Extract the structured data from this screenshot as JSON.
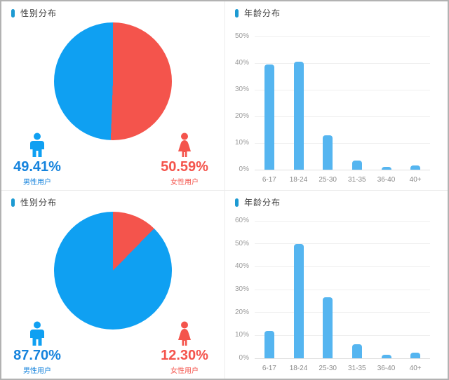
{
  "colors": {
    "pie_blue": "#0fa0f2",
    "pie_red": "#f4544c",
    "bar_blue": "#55b5f0",
    "text_blue": "#1583dd",
    "text_red": "#f4544c",
    "title_marker": "#1d9ad2",
    "grid_line": "#efefef",
    "axis_text": "#999999"
  },
  "panels": {
    "gender_top": {
      "title": "性别分布",
      "male_pct": "49.41%",
      "male_label": "男性用户",
      "female_pct": "50.59%",
      "female_label": "女性用户"
    },
    "age_top": {
      "title": "年龄分布"
    },
    "gender_bottom": {
      "title": "性别分布",
      "male_pct": "87.70%",
      "male_label": "男性用户",
      "female_pct": "12.30%",
      "female_label": "女性用户"
    },
    "age_bottom": {
      "title": "年龄分布"
    }
  },
  "chart_data": [
    {
      "type": "pie",
      "title": "性别分布",
      "labels": [
        "女性用户",
        "男性用户"
      ],
      "values": [
        50.59,
        49.41
      ],
      "colors": [
        "#f4544c",
        "#0fa0f2"
      ],
      "start_angle": "top",
      "direction": "clockwise",
      "legend_position": "bottom"
    },
    {
      "type": "bar",
      "title": "年龄分布",
      "categories": [
        "6-17",
        "18-24",
        "25-30",
        "31-35",
        "36-40",
        "40+"
      ],
      "values": [
        39.5,
        40.5,
        13,
        3.5,
        1,
        1.5
      ],
      "xlabel": "",
      "ylabel": "",
      "ylim": [
        0,
        50
      ],
      "ytick_step": 10,
      "ytick_suffix": "%",
      "bar_color": "#55b5f0",
      "grid": true
    },
    {
      "type": "pie",
      "title": "性别分布",
      "labels": [
        "女性用户",
        "男性用户"
      ],
      "values": [
        12.3,
        87.7
      ],
      "colors": [
        "#f4544c",
        "#0fa0f2"
      ],
      "start_angle": "top",
      "direction": "clockwise",
      "legend_position": "bottom"
    },
    {
      "type": "bar",
      "title": "年龄分布",
      "categories": [
        "6-17",
        "18-24",
        "25-30",
        "31-35",
        "36-40",
        "40+"
      ],
      "values": [
        12,
        50,
        26.5,
        6,
        1.5,
        2.5
      ],
      "xlabel": "",
      "ylabel": "",
      "ylim": [
        0,
        60
      ],
      "ytick_step": 10,
      "ytick_suffix": "%",
      "bar_color": "#55b5f0",
      "grid": true
    }
  ]
}
